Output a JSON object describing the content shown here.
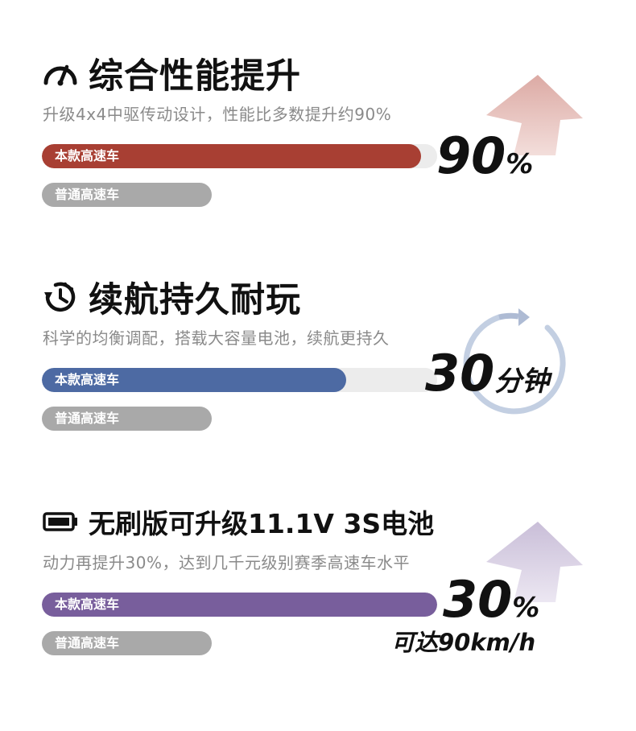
{
  "sections": [
    {
      "title": "综合性能提升",
      "subtitle": "升级4x4中驱传动设计，性能比多数提升约90%",
      "icon": "speedometer-icon",
      "bar_color": "#a83f33",
      "bar_fill": 0.96,
      "this_label": "本款高速车",
      "base_label": "普通高速车",
      "stat_value": "90",
      "stat_unit": "%",
      "deco": "arrow-up",
      "deco_color": "#e6c1bd"
    },
    {
      "title": "续航持久耐玩",
      "subtitle": "科学的均衡调配，搭载大容量电池，续航更持久",
      "icon": "clock-icon",
      "bar_color": "#4d6aa3",
      "bar_fill": 0.77,
      "this_label": "本款高速车",
      "base_label": "普通高速车",
      "stat_value": "30",
      "stat_unit": "分钟",
      "deco": "circle-arrow",
      "deco_color": "#c3cfe2"
    },
    {
      "title": "无刷版可升级11.1V 3S电池",
      "subtitle": "动力再提升30%，达到几千元级别赛季高速车水平",
      "icon": "battery-icon",
      "bar_color": "#785e9c",
      "bar_fill": 1.0,
      "this_label": "本款高速车",
      "base_label": "普通高速车",
      "stat_value": "30",
      "stat_unit": "%",
      "stat_extra": "可达90km/h",
      "deco": "arrow-up",
      "deco_color": "#d4cbe0"
    }
  ]
}
